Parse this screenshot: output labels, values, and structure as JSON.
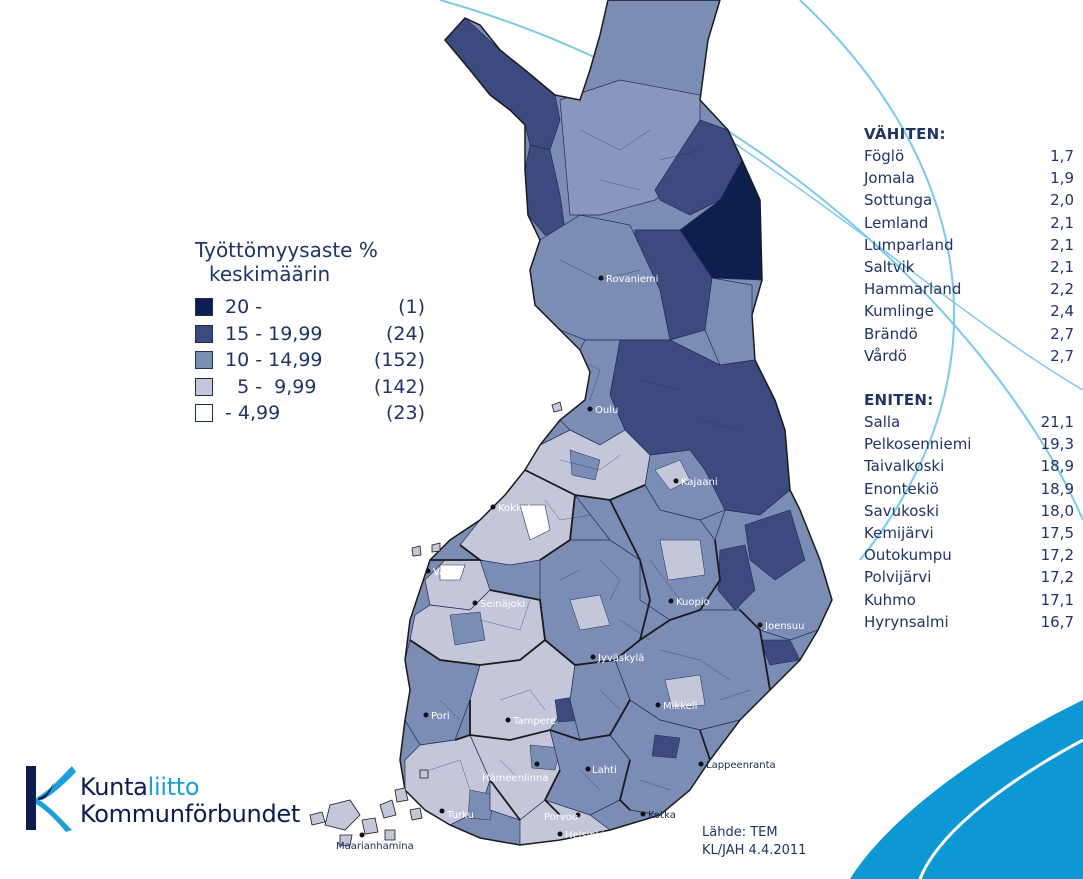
{
  "legend": {
    "title_line1": "Työttömyysaste %",
    "title_line2": "keskimäärin",
    "classes": [
      {
        "range": "20 -",
        "count": "(1)",
        "color": "#0c1f4e"
      },
      {
        "range": "15 - 19,99",
        "count": "(24)",
        "color": "#3b4b80"
      },
      {
        "range": "10 - 14,99",
        "count": "(152)",
        "color": "#7a8db5"
      },
      {
        "range": "  5 -  9,99",
        "count": "(142)",
        "color": "#c4c6da"
      },
      {
        "range": "- 4,99",
        "count": "(23)",
        "color": "#ffffff"
      }
    ]
  },
  "lowest": {
    "heading": "VÄHITEN:",
    "rows": [
      {
        "name": "Föglö",
        "value": "1,7"
      },
      {
        "name": "Jomala",
        "value": "1,9"
      },
      {
        "name": "Sottunga",
        "value": "2,0"
      },
      {
        "name": "Lemland",
        "value": "2,1"
      },
      {
        "name": "Lumparland",
        "value": "2,1"
      },
      {
        "name": "Saltvik",
        "value": "2,1"
      },
      {
        "name": "Hammarland",
        "value": "2,2"
      },
      {
        "name": "Kumlinge",
        "value": "2,4"
      },
      {
        "name": "Brändö",
        "value": "2,7"
      },
      {
        "name": "Vårdö",
        "value": "2,7"
      }
    ]
  },
  "highest": {
    "heading": "ENITEN:",
    "rows": [
      {
        "name": "Salla",
        "value": "21,1"
      },
      {
        "name": "Pelkosenniemi",
        "value": "19,3"
      },
      {
        "name": "Taivalkoski",
        "value": "18,9"
      },
      {
        "name": "Enontekiö",
        "value": "18,9"
      },
      {
        "name": "Savukoski",
        "value": "18,0"
      },
      {
        "name": "Kemijärvi",
        "value": "17,5"
      },
      {
        "name": "Outokumpu",
        "value": "17,2"
      },
      {
        "name": "Polvijärvi",
        "value": "17,2"
      },
      {
        "name": "Kuhmo",
        "value": "17,1"
      },
      {
        "name": "Hyrynsalmi",
        "value": "16,7"
      }
    ]
  },
  "cities": [
    {
      "name": "Rovaniemi"
    },
    {
      "name": "Oulu"
    },
    {
      "name": "Kajaani"
    },
    {
      "name": "Kokkola"
    },
    {
      "name": "Vaasa"
    },
    {
      "name": "Kuopio"
    },
    {
      "name": "Joensuu"
    },
    {
      "name": "Seinäjoki"
    },
    {
      "name": "Jyväskylä"
    },
    {
      "name": "Pori"
    },
    {
      "name": "Tampere"
    },
    {
      "name": "Mikkeli"
    },
    {
      "name": "Lappeenranta"
    },
    {
      "name": "Hämeenlinna"
    },
    {
      "name": "Lahti"
    },
    {
      "name": "Turku"
    },
    {
      "name": "Porvoo"
    },
    {
      "name": "Kotka"
    },
    {
      "name": "Helsinki"
    },
    {
      "name": "Maarianhamina"
    }
  ],
  "source": {
    "line1": "Lähde: TEM",
    "line2": "KL/JAH 4.4.2011"
  },
  "logo": {
    "text_line1_a": "Kunta",
    "text_line1_b": "liitto",
    "text_line2": "Kommunförbundet",
    "icon": "k-logo-icon"
  },
  "colors": {
    "class_20": "#0c1f4e",
    "class_15": "#3b4b80",
    "class_10": "#7a8db5",
    "class_5": "#c4c6da",
    "class_0": "#ffffff",
    "accent_blue": "#1aa0d8"
  }
}
